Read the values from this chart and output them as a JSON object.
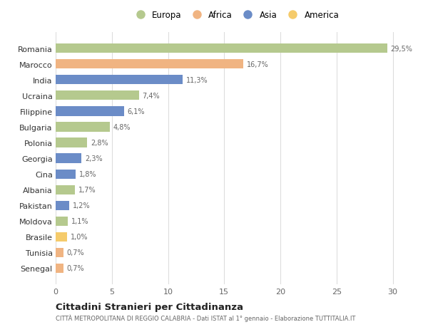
{
  "countries": [
    "Romania",
    "Marocco",
    "India",
    "Ucraina",
    "Filippine",
    "Bulgaria",
    "Polonia",
    "Georgia",
    "Cina",
    "Albania",
    "Pakistan",
    "Moldova",
    "Brasile",
    "Tunisia",
    "Senegal"
  ],
  "values": [
    29.5,
    16.7,
    11.3,
    7.4,
    6.1,
    4.8,
    2.8,
    2.3,
    1.8,
    1.7,
    1.2,
    1.1,
    1.0,
    0.7,
    0.7
  ],
  "labels": [
    "29,5%",
    "16,7%",
    "11,3%",
    "7,4%",
    "6,1%",
    "4,8%",
    "2,8%",
    "2,3%",
    "1,8%",
    "1,7%",
    "1,2%",
    "1,1%",
    "1,0%",
    "0,7%",
    "0,7%"
  ],
  "continents": [
    "Europa",
    "Africa",
    "Asia",
    "Europa",
    "Asia",
    "Europa",
    "Europa",
    "Asia",
    "Asia",
    "Europa",
    "Asia",
    "Europa",
    "America",
    "Africa",
    "Africa"
  ],
  "continent_colors": {
    "Europa": "#b5c98e",
    "Africa": "#f0b482",
    "Asia": "#6b8cc7",
    "America": "#f5cb6b"
  },
  "legend_order": [
    "Europa",
    "Africa",
    "Asia",
    "America"
  ],
  "title": "Cittadini Stranieri per Cittadinanza",
  "subtitle": "CITTÀ METROPOLITANA DI REGGIO CALABRIA - Dati ISTAT al 1° gennaio - Elaborazione TUTTITALIA.IT",
  "xlim": [
    0,
    32
  ],
  "xticks": [
    0,
    5,
    10,
    15,
    20,
    25,
    30
  ],
  "background_color": "#ffffff",
  "grid_color": "#dddddd",
  "bar_height": 0.6
}
